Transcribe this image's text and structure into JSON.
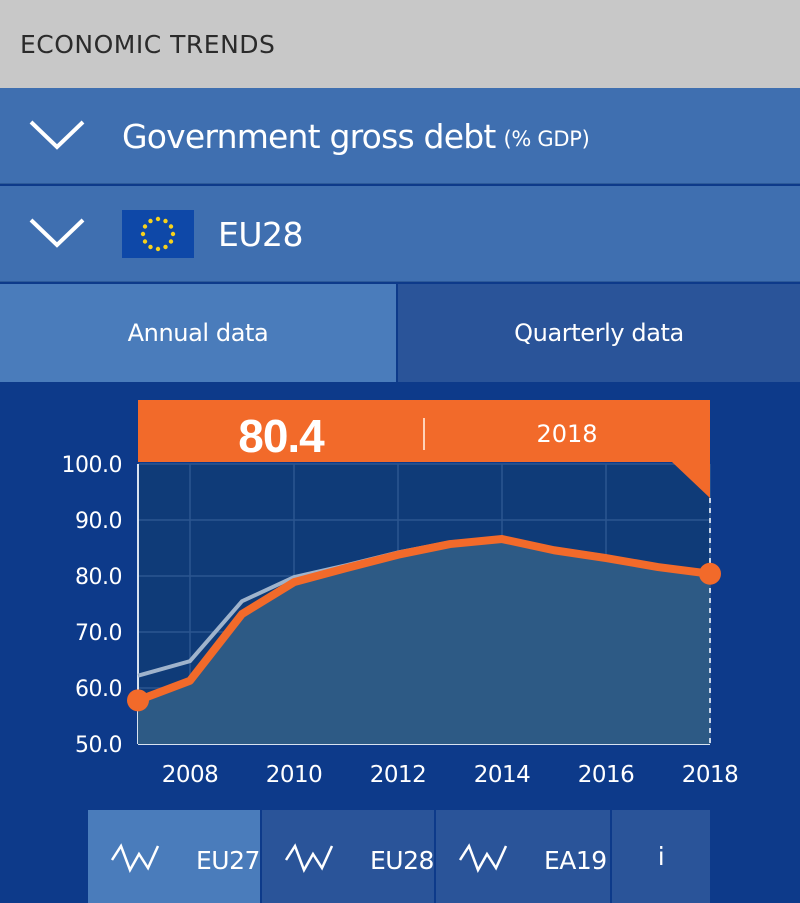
{
  "app": {
    "title": "ECONOMIC TRENDS"
  },
  "indicator": {
    "name": "Government gross debt",
    "unit": "(% GDP)",
    "icon": "chevron-down-icon"
  },
  "country": {
    "name": "EU28",
    "flag_icon": "eu-flag-icon"
  },
  "tabs": [
    {
      "label": "Annual data",
      "active": true
    },
    {
      "label": "Quarterly data",
      "active": false
    }
  ],
  "highlight": {
    "value": "80.4",
    "year": "2018"
  },
  "colors": {
    "accent": "#f26a2a",
    "background": "#0d3a8a",
    "panel": "#3f6fb0",
    "plot_fill": "#2d5a85",
    "comparison_line": "#9fb3cc"
  },
  "chart_data": {
    "type": "area",
    "title": "",
    "xlabel": "",
    "ylabel": "",
    "x": [
      2007,
      2008,
      2009,
      2010,
      2011,
      2012,
      2013,
      2014,
      2015,
      2016,
      2017,
      2018
    ],
    "xticks": [
      "2008",
      "2010",
      "2012",
      "2014",
      "2016",
      "2018"
    ],
    "yticks": [
      "100.0",
      "90.0",
      "80.0",
      "70.0",
      "60.0",
      "50.0"
    ],
    "ylim": [
      50,
      100
    ],
    "series": [
      {
        "name": "EU28",
        "values": [
          57.8,
          61.3,
          73.2,
          78.9,
          81.4,
          83.8,
          85.7,
          86.6,
          84.6,
          83.2,
          81.6,
          80.4
        ]
      },
      {
        "name": "EU27",
        "values": [
          62.2,
          64.8,
          75.5,
          79.8,
          81.9,
          84.2,
          86.0,
          86.8,
          84.9,
          83.5,
          81.8,
          80.6
        ]
      }
    ],
    "grid": true,
    "legend": "bottom"
  },
  "legend": {
    "items": [
      {
        "label": "EU27",
        "icon": "line-chart-icon",
        "active": true
      },
      {
        "label": "EU28",
        "icon": "line-chart-icon",
        "active": false
      },
      {
        "label": "EA19",
        "icon": "line-chart-icon",
        "active": false
      }
    ],
    "info_label": "i"
  }
}
